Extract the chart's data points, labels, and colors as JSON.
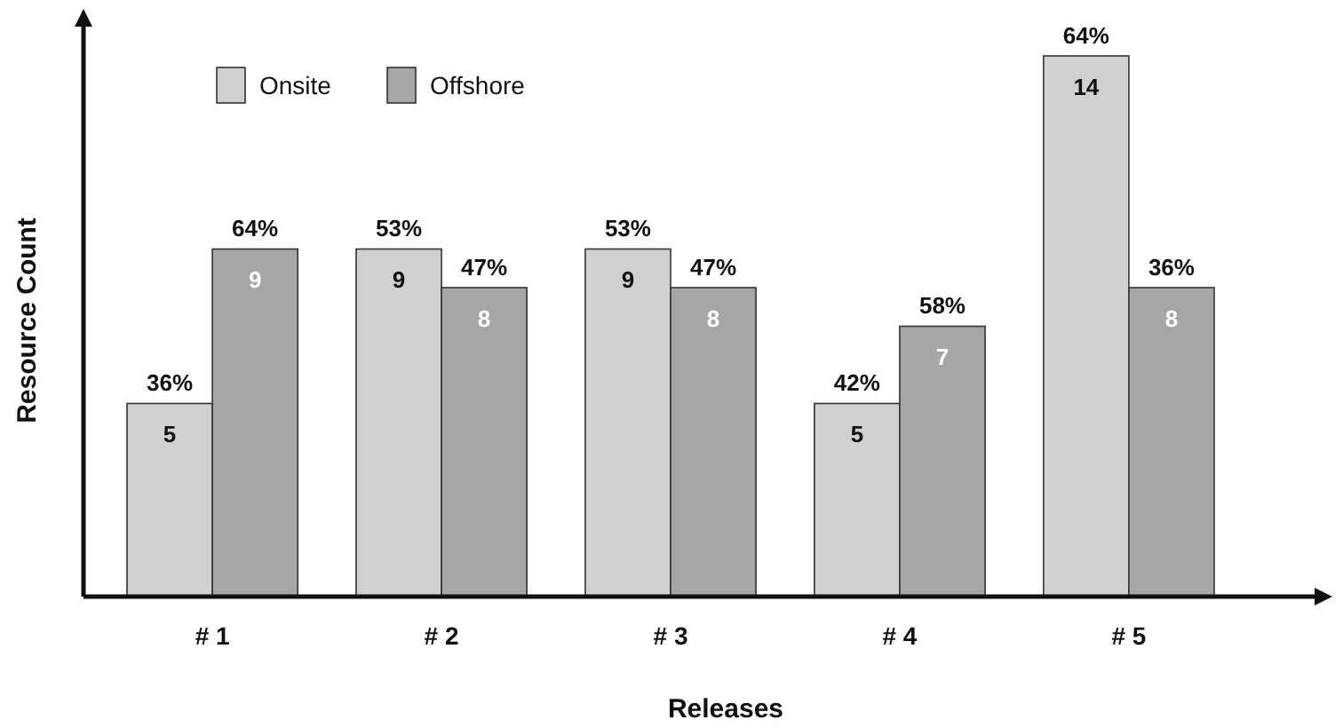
{
  "chart_data": {
    "type": "bar",
    "xlabel": "Releases",
    "ylabel": "Resource Count",
    "categories": [
      "# 1",
      "# 2",
      "# 3",
      "# 4",
      "# 5"
    ],
    "series": [
      {
        "name": "Onsite",
        "color": "#d0d0d0",
        "values": [
          5,
          9,
          9,
          5,
          14
        ]
      },
      {
        "name": "Offshore",
        "color": "#a6a6a6",
        "values": [
          9,
          8,
          8,
          7,
          8
        ]
      }
    ],
    "annotations": [
      {
        "text": "36%",
        "x": "# 1",
        "y": 5
      },
      {
        "text": "64%",
        "x": "# 1",
        "y": 9
      },
      {
        "text": "53%",
        "x": "# 2",
        "y": 9
      },
      {
        "text": "47%",
        "x": "# 2",
        "y": 8
      },
      {
        "text": "53%",
        "x": "# 3",
        "y": 9
      },
      {
        "text": "47%",
        "x": "# 3",
        "y": 8
      },
      {
        "text": "42%",
        "x": "# 4",
        "y": 5
      },
      {
        "text": "58%",
        "x": "# 4",
        "y": 7
      },
      {
        "text": "64%",
        "x": "# 5",
        "y": 14
      },
      {
        "text": "36%",
        "x": "# 5",
        "y": 8
      }
    ],
    "data_labels": true,
    "legend": "top left"
  }
}
